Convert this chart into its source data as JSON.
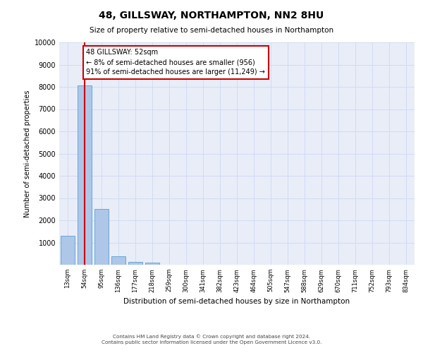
{
  "title": "48, GILLSWAY, NORTHAMPTON, NN2 8HU",
  "subtitle": "Size of property relative to semi-detached houses in Northampton",
  "xlabel": "Distribution of semi-detached houses by size in Northampton",
  "ylabel": "Number of semi-detached properties",
  "bar_labels": [
    "13sqm",
    "54sqm",
    "95sqm",
    "136sqm",
    "177sqm",
    "218sqm",
    "259sqm",
    "300sqm",
    "341sqm",
    "382sqm",
    "423sqm",
    "464sqm",
    "505sqm",
    "547sqm",
    "588sqm",
    "629sqm",
    "670sqm",
    "711sqm",
    "752sqm",
    "793sqm",
    "834sqm"
  ],
  "bar_values": [
    1300,
    8050,
    2500,
    380,
    130,
    80,
    0,
    0,
    0,
    0,
    0,
    0,
    0,
    0,
    0,
    0,
    0,
    0,
    0,
    0,
    0
  ],
  "bar_color": "#aec6e8",
  "bar_edge_color": "#5a9fd4",
  "annotation_text": "48 GILLSWAY: 52sqm\n← 8% of semi-detached houses are smaller (956)\n91% of semi-detached houses are larger (11,249) →",
  "annotation_box_color": "#ffffff",
  "annotation_box_edge": "#cc0000",
  "vline_color": "#cc0000",
  "ylim": [
    0,
    10000
  ],
  "yticks": [
    0,
    1000,
    2000,
    3000,
    4000,
    5000,
    6000,
    7000,
    8000,
    9000,
    10000
  ],
  "grid_color": "#d0d8f0",
  "background_color": "#e8edf8",
  "footer_line1": "Contains HM Land Registry data © Crown copyright and database right 2024.",
  "footer_line2": "Contains public sector information licensed under the Open Government Licence v3.0."
}
